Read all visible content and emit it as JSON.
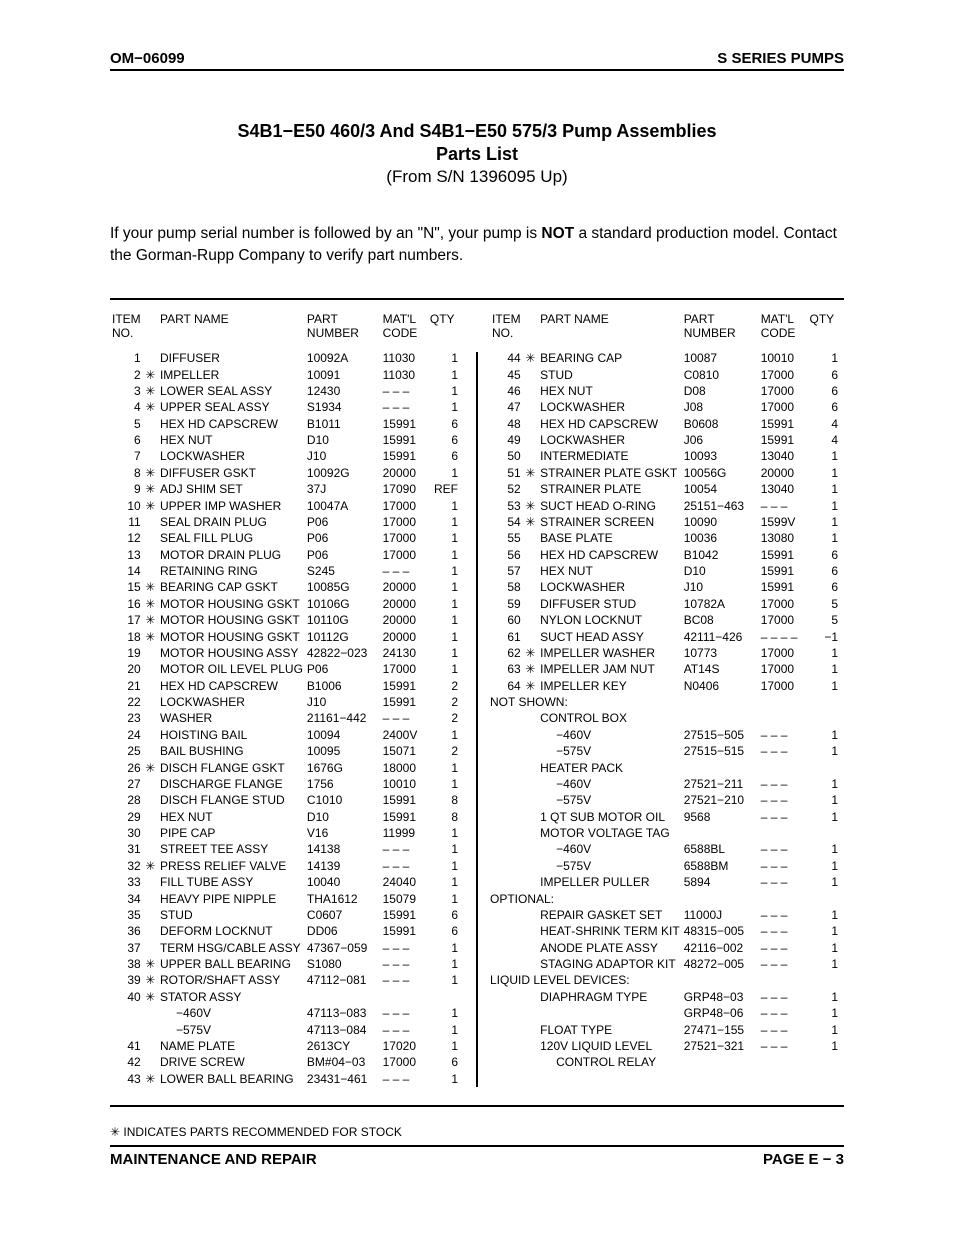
{
  "header": {
    "left": "OM−06099",
    "right": "S SERIES PUMPS"
  },
  "titles": {
    "line1": "S4B1−E50 460/3 And S4B1−E50 575/3 Pump Assemblies",
    "line2": "Parts List",
    "line3": "(From S/N 1396095 Up)"
  },
  "intro_pre": "If your pump serial number is followed by an \"N\", your pump is ",
  "intro_bold": "NOT",
  "intro_post": " a standard production model. Contact the Gorman‐Rupp Company to verify part numbers.",
  "columns": {
    "item": "ITEM\nNO.",
    "name": "PART NAME",
    "pnum": "PART\nNUMBER",
    "matl": "MAT'L\nCODE",
    "qty": "QTY"
  },
  "left_rows": [
    {
      "item": "1",
      "star": "",
      "name": "DIFFUSER",
      "pnum": "10092A",
      "matl": "11030",
      "qty": "1"
    },
    {
      "item": "2",
      "star": "✳",
      "name": "IMPELLER",
      "pnum": "10091",
      "matl": "11030",
      "qty": "1"
    },
    {
      "item": "3",
      "star": "✳",
      "name": "LOWER SEAL ASSY",
      "pnum": "12430",
      "matl": "– – –",
      "qty": "1"
    },
    {
      "item": "4",
      "star": "✳",
      "name": "UPPER SEAL ASSY",
      "pnum": "S1934",
      "matl": "– – –",
      "qty": "1"
    },
    {
      "item": "5",
      "star": "",
      "name": "HEX HD CAPSCREW",
      "pnum": "B1011",
      "matl": "15991",
      "qty": "6"
    },
    {
      "item": "6",
      "star": "",
      "name": "HEX NUT",
      "pnum": "D10",
      "matl": "15991",
      "qty": "6"
    },
    {
      "item": "7",
      "star": "",
      "name": "LOCKWASHER",
      "pnum": "J10",
      "matl": "15991",
      "qty": "6"
    },
    {
      "item": "8",
      "star": "✳",
      "name": "DIFFUSER GSKT",
      "pnum": "10092G",
      "matl": "20000",
      "qty": "1"
    },
    {
      "item": "9",
      "star": "✳",
      "name": "ADJ SHIM SET",
      "pnum": "37J",
      "matl": "17090",
      "qty": "REF"
    },
    {
      "item": "10",
      "star": "✳",
      "name": "UPPER IMP WASHER",
      "pnum": "10047A",
      "matl": "17000",
      "qty": "1"
    },
    {
      "item": "11",
      "star": "",
      "name": "SEAL DRAIN PLUG",
      "pnum": "P06",
      "matl": "17000",
      "qty": "1"
    },
    {
      "item": "12",
      "star": "",
      "name": "SEAL FILL PLUG",
      "pnum": "P06",
      "matl": "17000",
      "qty": "1"
    },
    {
      "item": "13",
      "star": "",
      "name": "MOTOR DRAIN PLUG",
      "pnum": "P06",
      "matl": "17000",
      "qty": "1"
    },
    {
      "item": "14",
      "star": "",
      "name": "RETAINING RING",
      "pnum": "S245",
      "matl": "– – –",
      "qty": "1"
    },
    {
      "item": "15",
      "star": "✳",
      "name": "BEARING CAP GSKT",
      "pnum": "10085G",
      "matl": "20000",
      "qty": "1"
    },
    {
      "item": "16",
      "star": "✳",
      "name": "MOTOR HOUSING GSKT",
      "pnum": "10106G",
      "matl": "20000",
      "qty": "1"
    },
    {
      "item": "17",
      "star": "✳",
      "name": "MOTOR HOUSING GSKT",
      "pnum": "10110G",
      "matl": "20000",
      "qty": "1"
    },
    {
      "item": "18",
      "star": "✳",
      "name": "MOTOR HOUSING GSKT",
      "pnum": "10112G",
      "matl": "20000",
      "qty": "1"
    },
    {
      "item": "19",
      "star": "",
      "name": "MOTOR HOUSING ASSY",
      "pnum": "42822−023",
      "matl": "24130",
      "qty": "1"
    },
    {
      "item": "20",
      "star": "",
      "name": "MOTOR OIL LEVEL PLUG",
      "pnum": "P06",
      "matl": "17000",
      "qty": "1"
    },
    {
      "item": "21",
      "star": "",
      "name": "HEX HD CAPSCREW",
      "pnum": "B1006",
      "matl": "15991",
      "qty": "2"
    },
    {
      "item": "22",
      "star": "",
      "name": "LOCKWASHER",
      "pnum": "J10",
      "matl": "15991",
      "qty": "2"
    },
    {
      "item": "23",
      "star": "",
      "name": "WASHER",
      "pnum": "21161−442",
      "matl": "– – –",
      "qty": "2"
    },
    {
      "item": "24",
      "star": "",
      "name": "HOISTING BAIL",
      "pnum": "10094",
      "matl": "2400V",
      "qty": "1"
    },
    {
      "item": "25",
      "star": "",
      "name": "BAIL BUSHING",
      "pnum": "10095",
      "matl": "15071",
      "qty": "2"
    },
    {
      "item": "26",
      "star": "✳",
      "name": "DISCH FLANGE GSKT",
      "pnum": "1676G",
      "matl": "18000",
      "qty": "1"
    },
    {
      "item": "27",
      "star": "",
      "name": "DISCHARGE FLANGE",
      "pnum": "1756",
      "matl": "10010",
      "qty": "1"
    },
    {
      "item": "28",
      "star": "",
      "name": "DISCH FLANGE STUD",
      "pnum": "C1010",
      "matl": "15991",
      "qty": "8"
    },
    {
      "item": "29",
      "star": "",
      "name": "HEX NUT",
      "pnum": "D10",
      "matl": "15991",
      "qty": "8"
    },
    {
      "item": "30",
      "star": "",
      "name": "PIPE CAP",
      "pnum": "V16",
      "matl": "11999",
      "qty": "1"
    },
    {
      "item": "31",
      "star": "",
      "name": "STREET TEE ASSY",
      "pnum": "14138",
      "matl": "– – –",
      "qty": "1"
    },
    {
      "item": "32",
      "star": "✳",
      "name": "PRESS RELIEF VALVE",
      "pnum": "14139",
      "matl": "– – –",
      "qty": "1"
    },
    {
      "item": "33",
      "star": "",
      "name": "FILL TUBE ASSY",
      "pnum": "10040",
      "matl": "24040",
      "qty": "1"
    },
    {
      "item": "34",
      "star": "",
      "name": "HEAVY PIPE NIPPLE",
      "pnum": "THA1612",
      "matl": "15079",
      "qty": "1"
    },
    {
      "item": "35",
      "star": "",
      "name": "STUD",
      "pnum": "C0607",
      "matl": "15991",
      "qty": "6"
    },
    {
      "item": "36",
      "star": "",
      "name": "DEFORM LOCKNUT",
      "pnum": "DD06",
      "matl": "15991",
      "qty": "6"
    },
    {
      "item": "37",
      "star": "",
      "name": "TERM HSG/CABLE ASSY",
      "pnum": "47367−059",
      "matl": "– – –",
      "qty": "1"
    },
    {
      "item": "38",
      "star": "✳",
      "name": "UPPER BALL BEARING",
      "pnum": "S1080",
      "matl": "– – –",
      "qty": "1"
    },
    {
      "item": "39",
      "star": "✳",
      "name": "ROTOR/SHAFT ASSY",
      "pnum": "47112−081",
      "matl": "– – –",
      "qty": "1"
    },
    {
      "item": "40",
      "star": "✳",
      "name": "STATOR ASSY",
      "pnum": "",
      "matl": "",
      "qty": ""
    },
    {
      "item": "",
      "star": "",
      "name": "−460V",
      "pnum": "47113−083",
      "matl": "– – –",
      "qty": "1",
      "indent": true
    },
    {
      "item": "",
      "star": "",
      "name": "−575V",
      "pnum": "47113−084",
      "matl": "– – –",
      "qty": "1",
      "indent": true
    },
    {
      "item": "41",
      "star": "",
      "name": "NAME PLATE",
      "pnum": "2613CY",
      "matl": "17020",
      "qty": "1"
    },
    {
      "item": "42",
      "star": "",
      "name": "DRIVE SCREW",
      "pnum": "BM#04−03",
      "matl": "17000",
      "qty": "6"
    },
    {
      "item": "43",
      "star": "✳",
      "name": "LOWER BALL BEARING",
      "pnum": "23431−461",
      "matl": "– – –",
      "qty": "1"
    }
  ],
  "right_rows": [
    {
      "item": "44",
      "star": "✳",
      "name": "BEARING CAP",
      "pnum": "10087",
      "matl": "10010",
      "qty": "1"
    },
    {
      "item": "45",
      "star": "",
      "name": "STUD",
      "pnum": "C0810",
      "matl": "17000",
      "qty": "6"
    },
    {
      "item": "46",
      "star": "",
      "name": "HEX NUT",
      "pnum": "D08",
      "matl": "17000",
      "qty": "6"
    },
    {
      "item": "47",
      "star": "",
      "name": "LOCKWASHER",
      "pnum": "J08",
      "matl": "17000",
      "qty": "6"
    },
    {
      "item": "48",
      "star": "",
      "name": "HEX HD CAPSCREW",
      "pnum": "B0608",
      "matl": "15991",
      "qty": "4"
    },
    {
      "item": "49",
      "star": "",
      "name": "LOCKWASHER",
      "pnum": "J06",
      "matl": "15991",
      "qty": "4"
    },
    {
      "item": "50",
      "star": "",
      "name": "INTERMEDIATE",
      "pnum": "10093",
      "matl": "13040",
      "qty": "1"
    },
    {
      "item": "51",
      "star": "✳",
      "name": "STRAINER PLATE GSKT",
      "pnum": "10056G",
      "matl": "20000",
      "qty": "1"
    },
    {
      "item": "52",
      "star": "",
      "name": "STRAINER PLATE",
      "pnum": "10054",
      "matl": "13040",
      "qty": "1"
    },
    {
      "item": "53",
      "star": "✳",
      "name": "SUCT HEAD O‐RING",
      "pnum": "25151−463",
      "matl": "– – –",
      "qty": "1"
    },
    {
      "item": "54",
      "star": "✳",
      "name": "STRAINER SCREEN",
      "pnum": "10090",
      "matl": "1599V",
      "qty": "1"
    },
    {
      "item": "55",
      "star": "",
      "name": "BASE PLATE",
      "pnum": "10036",
      "matl": "13080",
      "qty": "1"
    },
    {
      "item": "56",
      "star": "",
      "name": "HEX HD CAPSCREW",
      "pnum": "B1042",
      "matl": "15991",
      "qty": "6"
    },
    {
      "item": "57",
      "star": "",
      "name": "HEX NUT",
      "pnum": "D10",
      "matl": "15991",
      "qty": "6"
    },
    {
      "item": "58",
      "star": "",
      "name": "LOCKWASHER",
      "pnum": "J10",
      "matl": "15991",
      "qty": "6"
    },
    {
      "item": "59",
      "star": "",
      "name": "DIFFUSER STUD",
      "pnum": "10782A",
      "matl": "17000",
      "qty": "5"
    },
    {
      "item": "60",
      "star": "",
      "name": "NYLON LOCKNUT",
      "pnum": "BC08",
      "matl": "17000",
      "qty": "5"
    },
    {
      "item": "61",
      "star": "",
      "name": "SUCT HEAD ASSY",
      "pnum": "42111−426",
      "matl": "– – – –",
      "qty": "−1"
    },
    {
      "item": "62",
      "star": "✳",
      "name": "IMPELLER WASHER",
      "pnum": "10773",
      "matl": "17000",
      "qty": "1"
    },
    {
      "item": "63",
      "star": "✳",
      "name": "IMPELLER JAM NUT",
      "pnum": "AT14S",
      "matl": "17000",
      "qty": "1"
    },
    {
      "item": "64",
      "star": "✳",
      "name": "IMPELLER KEY",
      "pnum": "N0406",
      "matl": "17000",
      "qty": "1"
    },
    {
      "section": "NOT SHOWN:"
    },
    {
      "item": "",
      "star": "",
      "name": "CONTROL BOX",
      "pnum": "",
      "matl": "",
      "qty": ""
    },
    {
      "item": "",
      "star": "",
      "name": "−460V",
      "pnum": "27515−505",
      "matl": "– – –",
      "qty": "1",
      "indent": true
    },
    {
      "item": "",
      "star": "",
      "name": "−575V",
      "pnum": "27515−515",
      "matl": "– – –",
      "qty": "1",
      "indent": true
    },
    {
      "item": "",
      "star": "",
      "name": "HEATER PACK",
      "pnum": "",
      "matl": "",
      "qty": ""
    },
    {
      "item": "",
      "star": "",
      "name": "−460V",
      "pnum": "27521−211",
      "matl": "– – –",
      "qty": "1",
      "indent": true
    },
    {
      "item": "",
      "star": "",
      "name": "−575V",
      "pnum": "27521−210",
      "matl": "– – –",
      "qty": "1",
      "indent": true
    },
    {
      "item": "",
      "star": "",
      "name": "1 QT SUB MOTOR OIL",
      "pnum": "9568",
      "matl": "– – –",
      "qty": "1"
    },
    {
      "item": "",
      "star": "",
      "name": "MOTOR VOLTAGE TAG",
      "pnum": "",
      "matl": "",
      "qty": ""
    },
    {
      "item": "",
      "star": "",
      "name": "−460V",
      "pnum": "6588BL",
      "matl": "– – –",
      "qty": "1",
      "indent": true
    },
    {
      "item": "",
      "star": "",
      "name": "−575V",
      "pnum": "6588BM",
      "matl": "– – –",
      "qty": "1",
      "indent": true
    },
    {
      "item": "",
      "star": "",
      "name": "IMPELLER PULLER",
      "pnum": "5894",
      "matl": "– – –",
      "qty": "1"
    },
    {
      "section": "OPTIONAL:"
    },
    {
      "item": "",
      "star": "",
      "name": "REPAIR GASKET SET",
      "pnum": "11000J",
      "matl": "– – –",
      "qty": "1"
    },
    {
      "item": "",
      "star": "",
      "name": "HEAT‐SHRINK TERM KIT",
      "pnum": "48315−005",
      "matl": "– – –",
      "qty": "1"
    },
    {
      "item": "",
      "star": "",
      "name": "ANODE PLATE ASSY",
      "pnum": "42116−002",
      "matl": "– – –",
      "qty": "1"
    },
    {
      "item": "",
      "star": "",
      "name": "STAGING ADAPTOR KIT",
      "pnum": "48272−005",
      "matl": "– – –",
      "qty": "1"
    },
    {
      "section": "LIQUID LEVEL DEVICES:"
    },
    {
      "item": "",
      "star": "",
      "name": "DIAPHRAGM TYPE",
      "pnum": "GRP48−03",
      "matl": "– – –",
      "qty": "1"
    },
    {
      "item": "",
      "star": "",
      "name": "",
      "pnum": "GRP48−06",
      "matl": "– – –",
      "qty": "1"
    },
    {
      "item": "",
      "star": "",
      "name": "FLOAT TYPE",
      "pnum": "27471−155",
      "matl": "– – –",
      "qty": "1"
    },
    {
      "item": "",
      "star": "",
      "name": "120V LIQUID LEVEL",
      "pnum": "27521−321",
      "matl": "– – –",
      "qty": "1"
    },
    {
      "item": "",
      "star": "",
      "name": "CONTROL RELAY",
      "pnum": "",
      "matl": "",
      "qty": "",
      "indent": true
    }
  ],
  "footnote": "✳ INDICATES PARTS RECOMMENDED FOR STOCK",
  "footer": {
    "left": "MAINTENANCE AND REPAIR",
    "right": "PAGE E − 3"
  }
}
